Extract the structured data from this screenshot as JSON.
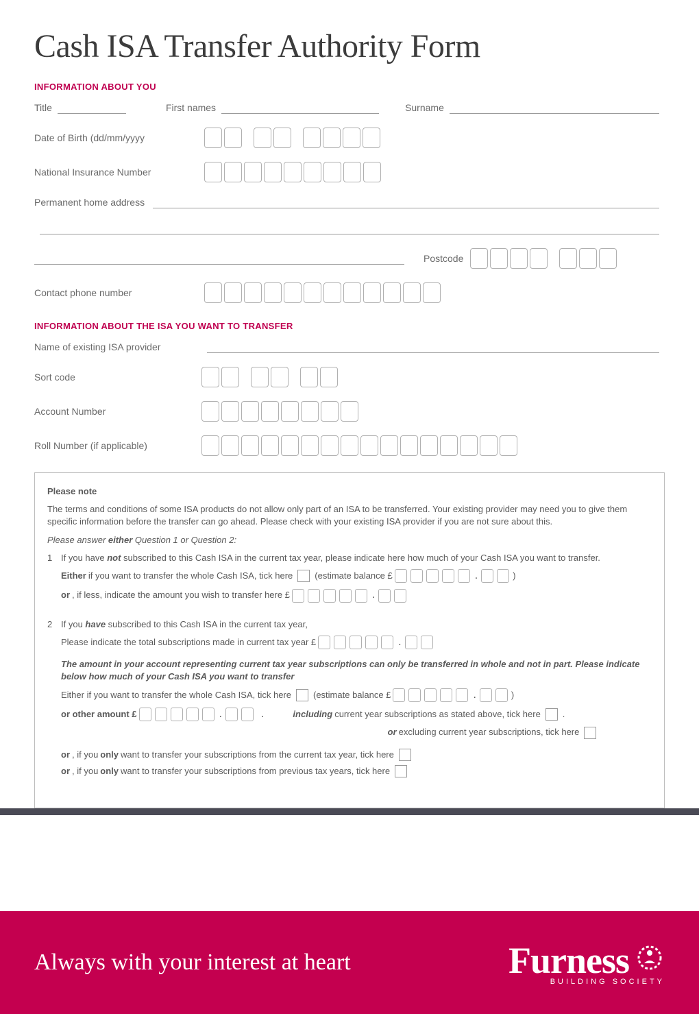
{
  "title": "Cash ISA Transfer Authority Form",
  "sections": {
    "about_you": {
      "heading": "INFORMATION ABOUT YOU",
      "fields": {
        "title_label": "Title",
        "first_names_label": "First names",
        "surname_label": "Surname",
        "dob_label": "Date of Birth (dd/mm/yyyy",
        "ni_label": "National Insurance Number",
        "address_label": "Permanent home address",
        "postcode_label": "Postcode",
        "phone_label": "Contact phone number"
      },
      "box_counts": {
        "dob_groups": [
          2,
          2,
          4
        ],
        "ni_total": 9,
        "postcode_groups": [
          4,
          3
        ],
        "phone_total": 12
      }
    },
    "about_isa": {
      "heading": "INFORMATION ABOUT THE ISA YOU WANT TO TRANSFER",
      "fields": {
        "provider_label": "Name of existing ISA provider",
        "sortcode_label": "Sort code",
        "account_label": "Account Number",
        "roll_label": "Roll Number (if applicable)"
      },
      "box_counts": {
        "sortcode_groups": [
          2,
          2,
          2
        ],
        "account_total": 8,
        "roll_total": 16
      }
    },
    "note": {
      "title": "Please note",
      "intro": "The terms and conditions of some ISA products do not allow only part of an ISA to be transferred. Your existing provider may need you to give them specific information before the transfer can go ahead. Please check with your existing ISA provider if you are not sure about this.",
      "prompt_prefix": "Please answer ",
      "prompt_bold": "either",
      "prompt_suffix": " Question 1 or Question 2:",
      "q1_num": "1",
      "q1_text_a": "If you have ",
      "q1_not": "not",
      "q1_text_b": " subscribed to this Cash ISA in the current tax year, please indicate here how much of your Cash ISA you want to transfer.",
      "q1_either": "Either",
      "q1_either_text": " if you want to transfer the whole Cash ISA, tick here",
      "q1_estimate": "(estimate balance £",
      "q1_or": "or",
      "q1_or_text": ", if less, indicate the amount you wish to transfer here £",
      "q2_num": "2",
      "q2_text_a": "If you ",
      "q2_have": "have",
      "q2_text_b": " subscribed to this Cash ISA in the current tax year,",
      "q2_indicate": "Please indicate the total subscriptions made in current tax year £",
      "q2_bold": "The amount in your account representing current tax year subscriptions can only be transferred in whole and not in part. Please indicate below how much of your Cash ISA you want to transfer",
      "q2_either": "Either if you want to transfer the whole Cash ISA, tick here",
      "q2_estimate": "(estimate balance £",
      "q2_other": "or other amount £",
      "q2_including": "including",
      "q2_incl_text": " current year subscriptions as stated above, tick here",
      "q2_or": "or",
      "q2_excl_text": " excluding current year subscriptions, tick here",
      "q2_only1_a": "or",
      "q2_only1_b": ", if you ",
      "q2_only1_c": "only",
      "q2_only1_d": " want to transfer your subscriptions from the current tax year, tick here",
      "q2_only2_a": "or",
      "q2_only2_b": ", if you ",
      "q2_only2_c": "only",
      "q2_only2_d": " want to transfer your subscriptions from previous tax years, tick here",
      "money_groups": [
        5,
        2
      ]
    }
  },
  "footer": {
    "slogan": "Always with your interest at heart",
    "brand": "Furness",
    "sub": "BUILDING SOCIETY"
  },
  "colors": {
    "brand": "#c4004f",
    "heading": "#c00050",
    "text": "#5a5a5a",
    "stripe": "#4a4a55",
    "box_border": "#b0b0b0"
  }
}
